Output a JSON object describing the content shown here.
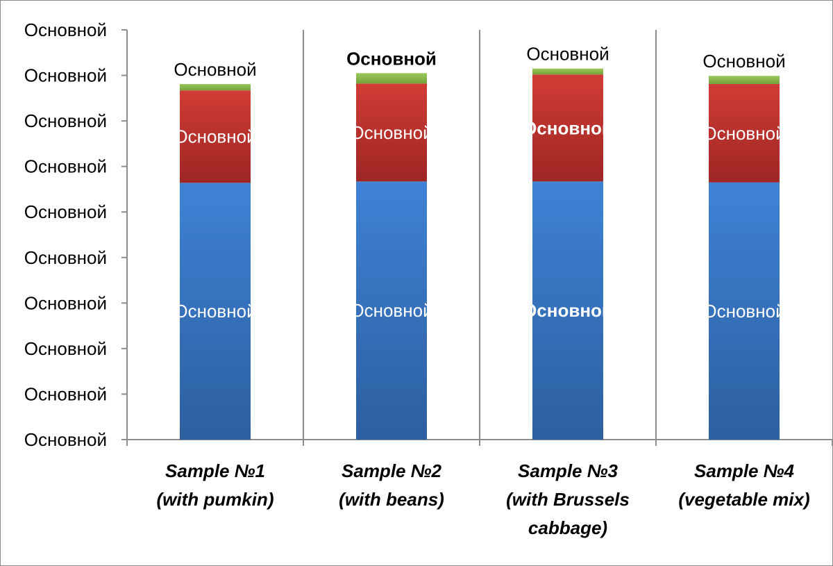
{
  "chart_data": {
    "type": "bar",
    "stacked": true,
    "ylim": [
      0,
      9
    ],
    "yticks": [
      0,
      1,
      2,
      3,
      4,
      5,
      6,
      7,
      8,
      9
    ],
    "ytick_labels": [
      "Основной",
      "Основной",
      "Основной",
      "Основной",
      "Основной",
      "Основной",
      "Основной",
      "Основной",
      "Основной",
      "Основной"
    ],
    "categories": [
      [
        "Sample №1",
        "(with pumkin)"
      ],
      [
        "Sample №2",
        "(with beans)"
      ],
      [
        "Sample №3",
        "(with Brussels",
        "cabbage)"
      ],
      [
        "Sample №4",
        "(vegetable mix)"
      ]
    ],
    "series": [
      {
        "color": "#3a78c6",
        "values": [
          5.64,
          5.67,
          5.67,
          5.65
        ],
        "labels": [
          "Основной",
          "Основной",
          "Основной",
          "Основной"
        ],
        "label_bold": [
          false,
          false,
          true,
          false
        ]
      },
      {
        "color": "#c9352f",
        "values": [
          2.03,
          2.15,
          2.35,
          2.16
        ],
        "labels": [
          "Основной",
          "Основной",
          "Основной",
          "Основной"
        ],
        "label_bold": [
          false,
          false,
          true,
          false
        ]
      },
      {
        "color": "#8cb84a",
        "values": [
          0.14,
          0.23,
          0.13,
          0.18
        ],
        "labels": [
          "Основной",
          "Основной",
          "Основной",
          "Основной"
        ],
        "label_bold": [
          false,
          true,
          false,
          false
        ]
      }
    ],
    "grid": "vertical"
  }
}
